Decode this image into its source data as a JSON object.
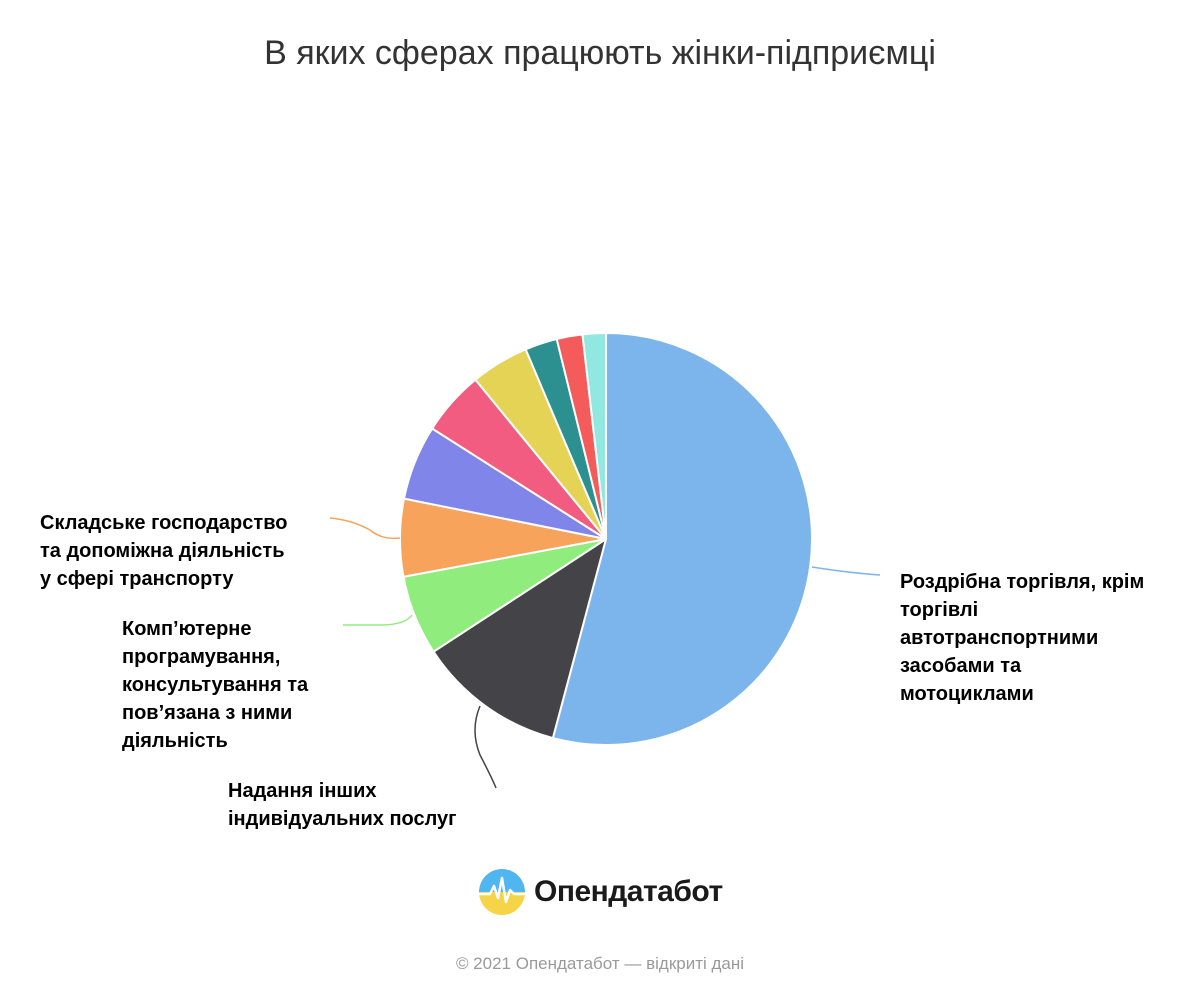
{
  "chart_data": {
    "type": "pie",
    "title": "В яких сферах працюють жінки-підприємці",
    "slices": [
      {
        "label": "Роздрібна торгівля, крім торгівлі автотранспортними засобами та мотоциклами",
        "value": 53.5,
        "color": "#7cb5ec"
      },
      {
        "label": "Надання інших індивідуальних послуг",
        "value": 11.5,
        "color": "#434348"
      },
      {
        "label": "Комп’ютерне програмування, консультування та пов’язана з ними діяльність",
        "value": 6.2,
        "color": "#90ed7d"
      },
      {
        "label": "Складське господарство та допоміжна діяльність у сфері транспорту",
        "value": 6.0,
        "color": "#f7a35c"
      },
      {
        "label": "",
        "value": 5.8,
        "color": "#8085e9"
      },
      {
        "label": "",
        "value": 5.0,
        "color": "#f15c80"
      },
      {
        "label": "",
        "value": 4.5,
        "color": "#e4d354"
      },
      {
        "label": "",
        "value": 2.5,
        "color": "#2b908f"
      },
      {
        "label": "",
        "value": 2.0,
        "color": "#f45b5b"
      },
      {
        "label": "",
        "value": 1.8,
        "color": "#91e8e1"
      }
    ]
  },
  "labels": {
    "retail": [
      "Роздрібна торгівля, крім",
      "торгівлі",
      "автотранспортними",
      "засобами та",
      "мотоциклами"
    ],
    "services": [
      "Надання інших",
      "індивідуальних послуг"
    ],
    "it": [
      "Комп’ютерне",
      "програмування,",
      "консультування та",
      "пов’язана з ними",
      "діяльність"
    ],
    "warehouse": [
      "Складське господарство",
      "та допоміжна діяльність",
      "у сфері транспорту"
    ]
  },
  "logo": {
    "text": "Опендатабот",
    "icon": "opendatabot-logo-icon"
  },
  "footer": "© 2021 Опендатабот — відкриті дані"
}
